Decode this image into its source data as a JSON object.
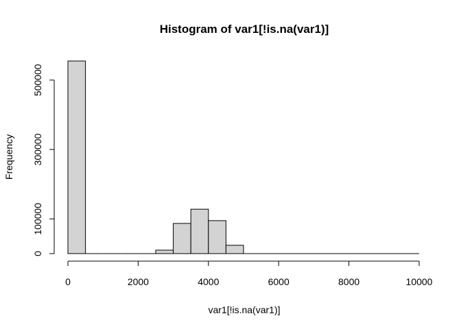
{
  "chart_data": {
    "type": "bar",
    "title": "Histogram of var1[!is.na(var1)]",
    "xlabel": "var1[!is.na(var1)]",
    "ylabel": "Frequency",
    "xlim": [
      0,
      10000
    ],
    "ylim": [
      0,
      555000
    ],
    "x_ticks": [
      0,
      2000,
      4000,
      6000,
      8000,
      10000
    ],
    "y_ticks": [
      0,
      100000,
      300000,
      500000
    ],
    "grid": false,
    "bar_fill": "#d3d3d3",
    "bar_stroke": "#000000",
    "bins": [
      {
        "start": 0,
        "end": 500,
        "value": 555000
      },
      {
        "start": 500,
        "end": 1000,
        "value": 0
      },
      {
        "start": 1000,
        "end": 1500,
        "value": 0
      },
      {
        "start": 1500,
        "end": 2000,
        "value": 0
      },
      {
        "start": 2000,
        "end": 2500,
        "value": 0
      },
      {
        "start": 2500,
        "end": 3000,
        "value": 10000
      },
      {
        "start": 3000,
        "end": 3500,
        "value": 87000
      },
      {
        "start": 3500,
        "end": 4000,
        "value": 128000
      },
      {
        "start": 4000,
        "end": 4500,
        "value": 95000
      },
      {
        "start": 4500,
        "end": 5000,
        "value": 24000
      },
      {
        "start": 5000,
        "end": 5500,
        "value": 0
      },
      {
        "start": 5500,
        "end": 6000,
        "value": 0
      },
      {
        "start": 6000,
        "end": 6500,
        "value": 0
      },
      {
        "start": 6500,
        "end": 7000,
        "value": 0
      },
      {
        "start": 7000,
        "end": 7500,
        "value": 0
      },
      {
        "start": 7500,
        "end": 8000,
        "value": 0
      },
      {
        "start": 8000,
        "end": 8500,
        "value": 0
      },
      {
        "start": 8500,
        "end": 9000,
        "value": 0
      },
      {
        "start": 9000,
        "end": 9500,
        "value": 0
      },
      {
        "start": 9500,
        "end": 10000,
        "value": 0
      }
    ]
  }
}
